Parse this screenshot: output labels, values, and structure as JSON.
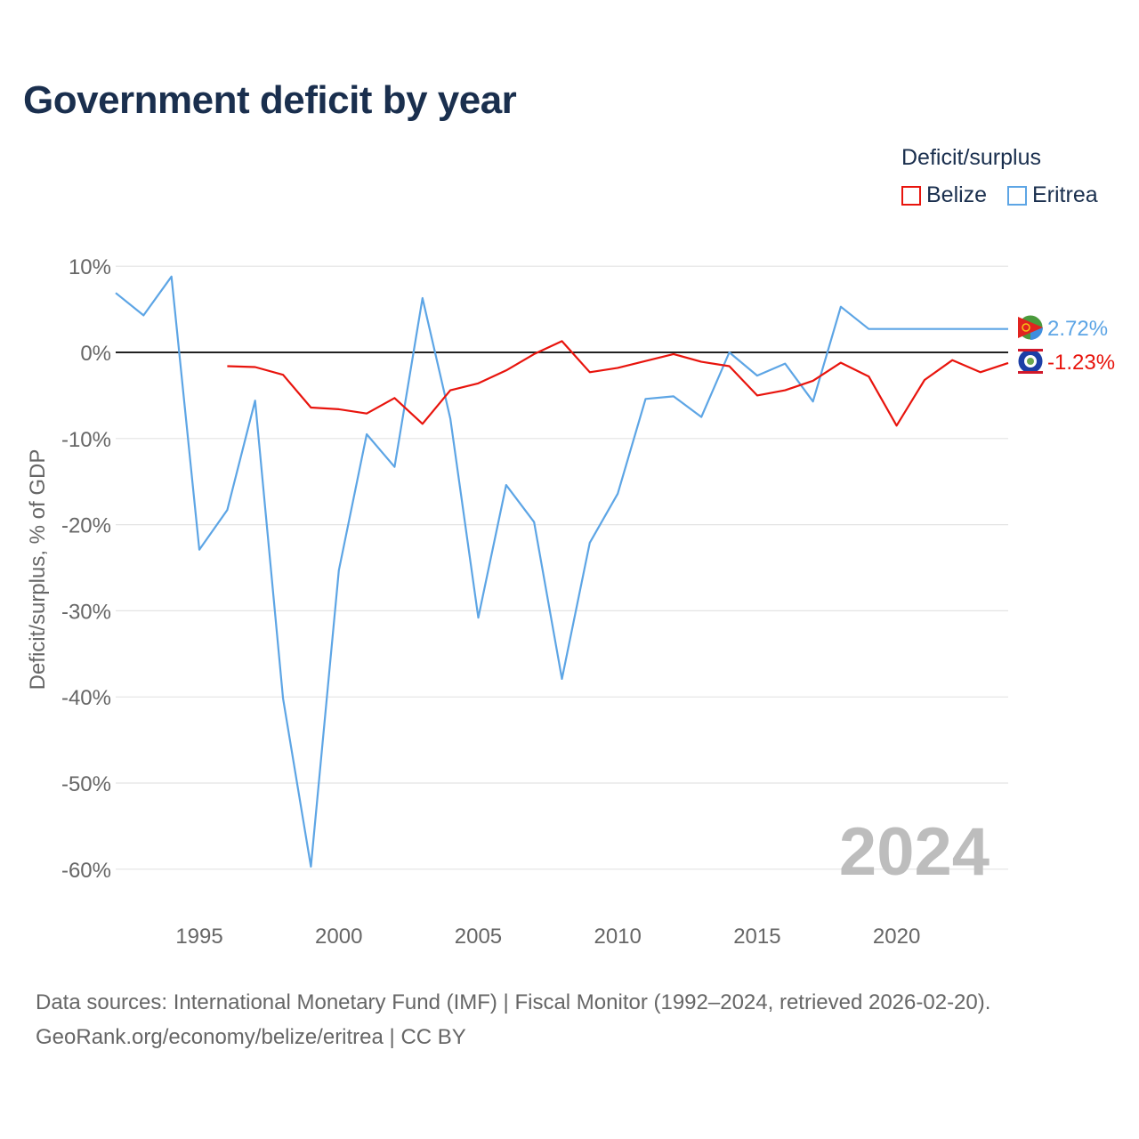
{
  "title": "Government deficit by year",
  "legend": {
    "title": "Deficit/surplus",
    "items": [
      {
        "label": "Belize",
        "color": "#e8140d"
      },
      {
        "label": "Eritrea",
        "color": "#5da5e5"
      }
    ]
  },
  "source": {
    "line1": "Data sources: International Monetary Fund (IMF) | Fiscal Monitor (1992–2024, retrieved 2026-02-20).",
    "line2": "GeoRank.org/economy/belize/eritrea | CC BY"
  },
  "chart_data": {
    "type": "line",
    "title": "Government deficit by year",
    "xlabel": "",
    "ylabel": "Deficit/surplus, % of GDP",
    "xlim": [
      1992,
      2024
    ],
    "ylim": [
      -65,
      12
    ],
    "x_ticks": [
      1995,
      2000,
      2005,
      2010,
      2015,
      2020
    ],
    "y_ticks": [
      10,
      0,
      -10,
      -20,
      -30,
      -40,
      -50,
      -60
    ],
    "y_tick_labels": [
      "10%",
      "0%",
      "-10%",
      "-20%",
      "-30%",
      "-40%",
      "-50%",
      "-60%"
    ],
    "grid": true,
    "year_watermark": "2024",
    "series": [
      {
        "name": "Belize",
        "color": "#e8140d",
        "end_label": "-1.23%",
        "flag_icon": "belize-flag-icon",
        "x": [
          1996,
          1997,
          1998,
          1999,
          2000,
          2001,
          2002,
          2003,
          2004,
          2005,
          2006,
          2007,
          2008,
          2009,
          2010,
          2011,
          2012,
          2013,
          2014,
          2015,
          2016,
          2017,
          2018,
          2019,
          2020,
          2021,
          2022,
          2023,
          2024
        ],
        "values": [
          -1.6,
          -1.7,
          -2.6,
          -6.4,
          -6.6,
          -7.1,
          -5.3,
          -8.3,
          -4.4,
          -3.6,
          -2.1,
          -0.2,
          1.3,
          -2.3,
          -1.8,
          -1.0,
          -0.2,
          -1.1,
          -1.6,
          -5.0,
          -4.4,
          -3.3,
          -1.2,
          -2.8,
          -8.5,
          -3.2,
          -0.9,
          -2.3,
          -1.23
        ]
      },
      {
        "name": "Eritrea",
        "color": "#5da5e5",
        "end_label": "2.72%",
        "flag_icon": "eritrea-flag-icon",
        "x": [
          1992,
          1993,
          1994,
          1995,
          1996,
          1997,
          1998,
          1999,
          2000,
          2001,
          2002,
          2003,
          2004,
          2005,
          2006,
          2007,
          2008,
          2009,
          2010,
          2011,
          2012,
          2013,
          2014,
          2015,
          2016,
          2017,
          2018,
          2019,
          2024
        ],
        "values": [
          6.9,
          4.3,
          8.8,
          -22.9,
          -18.3,
          -5.6,
          -40.2,
          -59.7,
          -25.3,
          -9.5,
          -13.3,
          6.3,
          -7.7,
          -30.8,
          -15.4,
          -19.7,
          -37.9,
          -22.1,
          -16.4,
          -5.4,
          -5.1,
          -7.5,
          0.0,
          -2.7,
          -1.3,
          -5.7,
          5.3,
          2.72,
          2.72
        ]
      }
    ]
  }
}
